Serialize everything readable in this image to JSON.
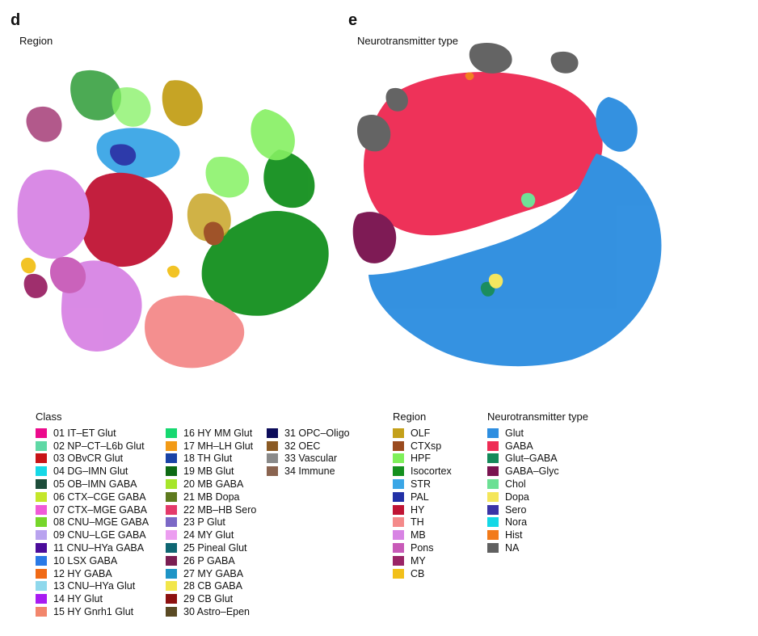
{
  "panels": {
    "d": {
      "letter": "d",
      "title": "Region"
    },
    "e": {
      "letter": "e",
      "title": "Neurotransmitter type"
    }
  },
  "legends": {
    "class": {
      "title": "Class",
      "items": [
        {
          "label": "01 IT–ET Glut",
          "color": "#ec0a8c"
        },
        {
          "label": "02 NP–CT–L6b Glut",
          "color": "#5fd8a5"
        },
        {
          "label": "03 OBvCR Glut",
          "color": "#c81417"
        },
        {
          "label": "04 DG–IMN Glut",
          "color": "#16d8e6"
        },
        {
          "label": "05 OB–IMN GABA",
          "color": "#1d4d3a"
        },
        {
          "label": "06 CTX–CGE GABA",
          "color": "#c4e62a"
        },
        {
          "label": "07 CTX–MGE GABA",
          "color": "#f05ad8"
        },
        {
          "label": "08 CNU–MGE GABA",
          "color": "#76d62a"
        },
        {
          "label": "09 CNU–LGE GABA",
          "color": "#b9a3ef"
        },
        {
          "label": "11 CNU–HYa GABA",
          "color": "#4b0c9a"
        },
        {
          "label": "10 LSX GABA",
          "color": "#2a7ae6"
        },
        {
          "label": "12 HY GABA",
          "color": "#f06a16"
        },
        {
          "label": "13 CNU–HYa Glut",
          "color": "#8fd8ec"
        },
        {
          "label": "14 HY Glut",
          "color": "#a81cf2"
        },
        {
          "label": "15 HY Gnrh1 Glut",
          "color": "#f2866c"
        },
        {
          "label": "16 HY MM Glut",
          "color": "#16d870"
        },
        {
          "label": "17 MH–LH Glut",
          "color": "#f29a16"
        },
        {
          "label": "18 TH Glut",
          "color": "#1a43a6"
        },
        {
          "label": "19 MB Glut",
          "color": "#0d6a14"
        },
        {
          "label": "20 MB GABA",
          "color": "#a6e62a"
        },
        {
          "label": "21 MB Dopa",
          "color": "#5e7a1e"
        },
        {
          "label": "22 MB–HB Sero",
          "color": "#e43a6a"
        },
        {
          "label": "23 P Glut",
          "color": "#7b68c6"
        },
        {
          "label": "24 MY Glut",
          "color": "#ec9ef0"
        },
        {
          "label": "25 Pineal Glut",
          "color": "#0e6672"
        },
        {
          "label": "26 P GABA",
          "color": "#7a1e52"
        },
        {
          "label": "27 MY GABA",
          "color": "#1e94c6"
        },
        {
          "label": "28 CB GABA",
          "color": "#f2e64a"
        },
        {
          "label": "29 CB Glut",
          "color": "#8c1010"
        },
        {
          "label": "30 Astro–Epen",
          "color": "#5a4a24"
        },
        {
          "label": "31 OPC–Oligo",
          "color": "#0c0c5a"
        },
        {
          "label": "32 OEC",
          "color": "#8a5a24"
        },
        {
          "label": "33 Vascular",
          "color": "#8a8a8a"
        },
        {
          "label": "34 Immune",
          "color": "#8a6450"
        }
      ]
    },
    "region": {
      "title": "Region",
      "items": [
        {
          "label": "OLF",
          "color": "#c4a01a"
        },
        {
          "label": "CTXsp",
          "color": "#9a4a1e"
        },
        {
          "label": "HPF",
          "color": "#7ef05a"
        },
        {
          "label": "Isocortex",
          "color": "#14901e"
        },
        {
          "label": "STR",
          "color": "#3aa6e6"
        },
        {
          "label": "PAL",
          "color": "#2230a6"
        },
        {
          "label": "HY",
          "color": "#c01434"
        },
        {
          "label": "TH",
          "color": "#f48a8a"
        },
        {
          "label": "MB",
          "color": "#d884e4"
        },
        {
          "label": "Pons",
          "color": "#c85ab8"
        },
        {
          "label": "MY",
          "color": "#9a2466"
        },
        {
          "label": "CB",
          "color": "#f2c01a"
        }
      ]
    },
    "nt": {
      "title": "Neurotransmitter type",
      "items": [
        {
          "label": "Glut",
          "color": "#2e8ee0"
        },
        {
          "label": "GABA",
          "color": "#ee2c54"
        },
        {
          "label": "Glut–GABA",
          "color": "#148a5a"
        },
        {
          "label": "GABA–Glyc",
          "color": "#7a1450"
        },
        {
          "label": "Chol",
          "color": "#6ce094"
        },
        {
          "label": "Dopa",
          "color": "#f4e65a"
        },
        {
          "label": "Sero",
          "color": "#3a34a6"
        },
        {
          "label": "Nora",
          "color": "#14d8e6"
        },
        {
          "label": "Hist",
          "color": "#f27a1a"
        },
        {
          "label": "NA",
          "color": "#606060"
        }
      ]
    }
  }
}
